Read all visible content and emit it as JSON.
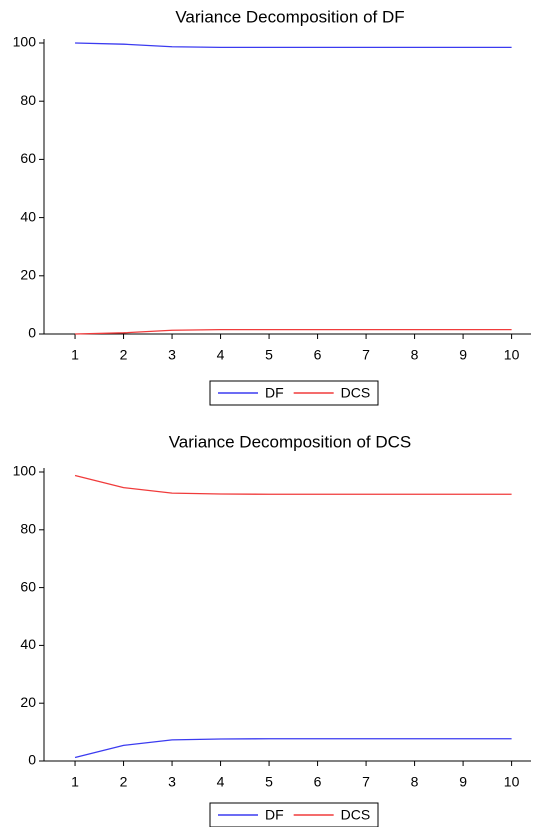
{
  "chart_data": [
    {
      "type": "line",
      "title": "Variance Decomposition of DF",
      "x": [
        1,
        2,
        3,
        4,
        5,
        6,
        7,
        8,
        9,
        10
      ],
      "series": [
        {
          "name": "DF",
          "color": "#3b3bf0",
          "values": [
            100,
            99.6,
            98.7,
            98.5,
            98.5,
            98.5,
            98.5,
            98.5,
            98.5,
            98.5
          ]
        },
        {
          "name": "DCS",
          "color": "#f03b3b",
          "values": [
            0,
            0.4,
            1.3,
            1.5,
            1.5,
            1.5,
            1.5,
            1.5,
            1.5,
            1.5
          ]
        }
      ],
      "xlim": [
        0.36,
        10.4
      ],
      "xticks": [
        1,
        2,
        3,
        4,
        5,
        6,
        7,
        8,
        9,
        10
      ],
      "ylim": [
        0,
        100
      ],
      "yticks": [
        0,
        20,
        40,
        60,
        80,
        100
      ],
      "legend": "bottom"
    },
    {
      "type": "line",
      "title": "Variance Decomposition of DCS",
      "x": [
        1,
        2,
        3,
        4,
        5,
        6,
        7,
        8,
        9,
        10
      ],
      "series": [
        {
          "name": "DF",
          "color": "#3b3bf0",
          "values": [
            1.2,
            5.4,
            7.3,
            7.6,
            7.7,
            7.7,
            7.7,
            7.7,
            7.7,
            7.7
          ]
        },
        {
          "name": "DCS",
          "color": "#f03b3b",
          "values": [
            98.8,
            94.6,
            92.7,
            92.4,
            92.3,
            92.3,
            92.3,
            92.3,
            92.3,
            92.3
          ]
        }
      ],
      "xlim": [
        0.36,
        10.4
      ],
      "xticks": [
        1,
        2,
        3,
        4,
        5,
        6,
        7,
        8,
        9,
        10
      ],
      "ylim": [
        0,
        100
      ],
      "yticks": [
        0,
        20,
        40,
        60,
        80,
        100
      ],
      "legend": "bottom"
    }
  ]
}
